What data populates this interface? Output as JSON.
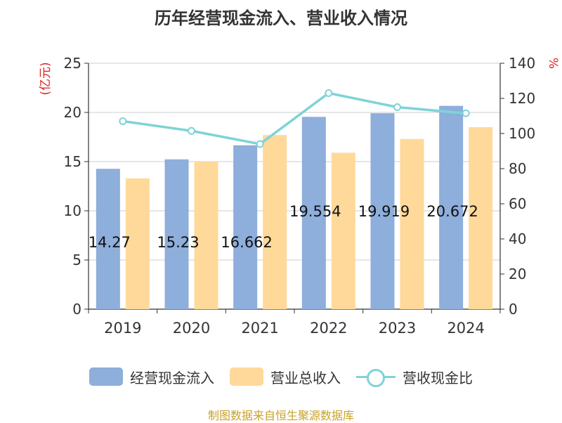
{
  "title": "历年经营现金流入、营业收入情况",
  "source": "制图数据来自恒生聚源数据库",
  "legend": {
    "cash_inflow": "经营现金流入",
    "revenue": "营业总收入",
    "ratio": "营收现金比"
  },
  "colors": {
    "cash_inflow": "#8eaedb",
    "revenue": "#ffd99a",
    "ratio": "#7fd3d6",
    "axis_unit": "#e02020",
    "source": "#c9a227"
  },
  "chart_data": {
    "type": "bar",
    "title": "历年经营现金流入、营业收入情况",
    "categories": [
      "2019",
      "2020",
      "2021",
      "2022",
      "2023",
      "2024"
    ],
    "ylabel": "(亿元)",
    "y2label": "%",
    "ylim": [
      0,
      25
    ],
    "yticks": [
      "0",
      "5",
      "10",
      "15",
      "20",
      "25"
    ],
    "y2lim": [
      0,
      140
    ],
    "y2ticks": [
      "0",
      "20",
      "40",
      "60",
      "80",
      "100",
      "120",
      "140"
    ],
    "grid": true,
    "legend_position": "bottom",
    "series": [
      {
        "name": "经营现金流入",
        "values": [
          14.27,
          15.23,
          16.66,
          19.55,
          19.92,
          20.67
        ],
        "labels": [
          "14.27",
          "15.23",
          "16.662",
          "19.554",
          "19.919",
          "20.672"
        ]
      },
      {
        "name": "营业总收入",
        "values": [
          13.3,
          15.0,
          17.7,
          15.9,
          17.3,
          18.5
        ]
      },
      {
        "name": "营收现金比",
        "values": [
          107,
          101.5,
          94,
          123,
          115,
          111.5
        ],
        "axis": "right"
      }
    ]
  }
}
